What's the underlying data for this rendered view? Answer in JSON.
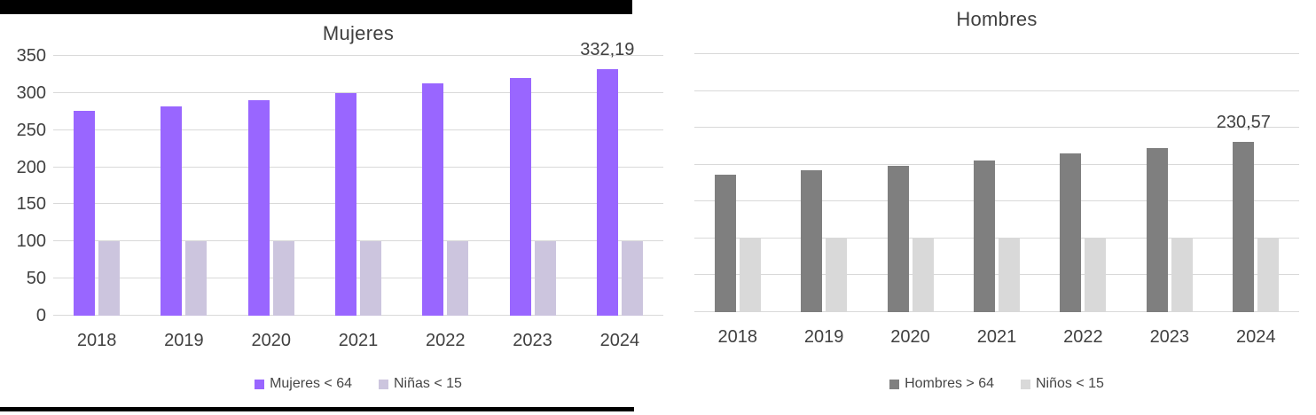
{
  "decorations": {
    "top_bar_color": "#000000",
    "bottom_bar_color": "#000000"
  },
  "chart_data": [
    {
      "type": "bar",
      "title": "Mujeres",
      "categories": [
        "2018",
        "2019",
        "2020",
        "2021",
        "2022",
        "2023",
        "2024"
      ],
      "series": [
        {
          "name": "Mujeres < 64",
          "color": "#9966FF",
          "values": [
            276,
            282,
            290,
            300,
            313,
            320,
            332.19
          ]
        },
        {
          "name": "Niñas < 15",
          "color": "#CCC5DE",
          "values": [
            100,
            100,
            100,
            100,
            100,
            100,
            100
          ]
        }
      ],
      "ylim": [
        0,
        350
      ],
      "ytick_step": 50,
      "show_y_labels": true,
      "y_labels": [
        "0",
        "50",
        "100",
        "150",
        "200",
        "250",
        "300",
        "350"
      ],
      "grid": true,
      "legend_position": "bottom",
      "annotation": {
        "label": "332,19",
        "series": 0,
        "category_index": 6,
        "value": 332.19
      }
    },
    {
      "type": "bar",
      "title": "Hombres",
      "categories": [
        "2018",
        "2019",
        "2020",
        "2021",
        "2022",
        "2023",
        "2024"
      ],
      "series": [
        {
          "name": "Hombres > 64",
          "color": "#7F7F7F",
          "values": [
            186,
            192,
            199,
            206,
            215,
            223,
            230.57
          ]
        },
        {
          "name": "Niños < 15",
          "color": "#D9D9D9",
          "values": [
            100,
            100,
            100,
            100,
            100,
            100,
            100
          ]
        }
      ],
      "ylim": [
        0,
        350
      ],
      "ytick_step": 50,
      "show_y_labels": false,
      "y_labels": [],
      "grid": true,
      "legend_position": "bottom",
      "annotation": {
        "label": "230,57",
        "series": 0,
        "category_index": 6,
        "value": 230.57
      }
    }
  ]
}
